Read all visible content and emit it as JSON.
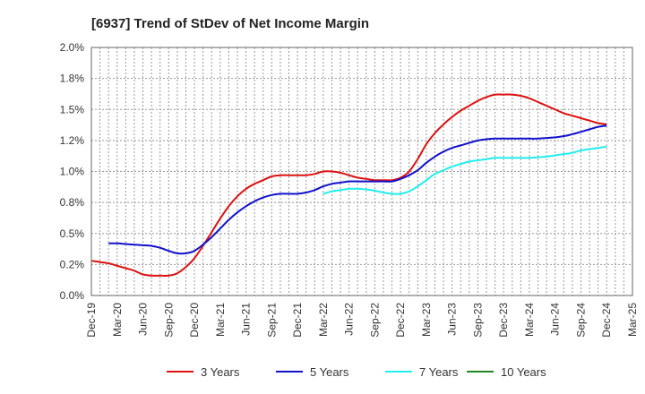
{
  "chart_data": {
    "type": "line",
    "title": "[6937]  Trend of StDev of Net Income Margin",
    "xlabel": "",
    "ylabel": "",
    "ylim": [
      0.0,
      2.0
    ],
    "ytick_values": [
      0.0,
      0.25,
      0.5,
      0.75,
      1.0,
      1.25,
      1.5,
      1.75,
      2.0
    ],
    "ytick_labels": [
      "0.0%",
      "0.2%",
      "0.5%",
      "0.8%",
      "1.0%",
      "1.2%",
      "1.5%",
      "1.8%",
      "2.0%"
    ],
    "x_tick_labels": [
      "Dec-19",
      "Mar-20",
      "Jun-20",
      "Sep-20",
      "Dec-20",
      "Mar-21",
      "Jun-21",
      "Sep-21",
      "Dec-21",
      "Mar-22",
      "Jun-22",
      "Sep-22",
      "Dec-22",
      "Mar-23",
      "Jun-23",
      "Sep-23",
      "Dec-23",
      "Mar-24",
      "Jun-24",
      "Sep-24",
      "Dec-24",
      "Mar-25"
    ],
    "x_unit": "month",
    "x_start": "Dec-19",
    "grid": true,
    "legend_position": "bottom",
    "series": [
      {
        "name": "3 Years",
        "color": "#dd1111",
        "points": [
          [
            "Dec-19",
            0.28
          ],
          [
            "Jan-20",
            0.27
          ],
          [
            "Feb-20",
            0.26
          ],
          [
            "Mar-20",
            0.24
          ],
          [
            "Apr-20",
            0.22
          ],
          [
            "May-20",
            0.2
          ],
          [
            "Jun-20",
            0.17
          ],
          [
            "Jul-20",
            0.16
          ],
          [
            "Aug-20",
            0.16
          ],
          [
            "Sep-20",
            0.16
          ],
          [
            "Oct-20",
            0.18
          ],
          [
            "Nov-20",
            0.23
          ],
          [
            "Dec-20",
            0.3
          ],
          [
            "Jan-21",
            0.4
          ],
          [
            "Feb-21",
            0.51
          ],
          [
            "Mar-21",
            0.62
          ],
          [
            "Apr-21",
            0.72
          ],
          [
            "May-21",
            0.8
          ],
          [
            "Jun-21",
            0.86
          ],
          [
            "Jul-21",
            0.9
          ],
          [
            "Aug-21",
            0.93
          ],
          [
            "Sep-21",
            0.96
          ],
          [
            "Oct-21",
            0.97
          ],
          [
            "Nov-21",
            0.97
          ],
          [
            "Dec-21",
            0.97
          ],
          [
            "Jan-22",
            0.97
          ],
          [
            "Feb-22",
            0.98
          ],
          [
            "Mar-22",
            1.0
          ],
          [
            "Apr-22",
            1.0
          ],
          [
            "May-22",
            0.99
          ],
          [
            "Jun-22",
            0.97
          ],
          [
            "Jul-22",
            0.95
          ],
          [
            "Aug-22",
            0.94
          ],
          [
            "Sep-22",
            0.93
          ],
          [
            "Oct-22",
            0.93
          ],
          [
            "Nov-22",
            0.93
          ],
          [
            "Dec-22",
            0.95
          ],
          [
            "Jan-23",
            1.0
          ],
          [
            "Feb-23",
            1.1
          ],
          [
            "Mar-23",
            1.22
          ],
          [
            "Apr-23",
            1.31
          ],
          [
            "May-23",
            1.38
          ],
          [
            "Jun-23",
            1.44
          ],
          [
            "Jul-23",
            1.49
          ],
          [
            "Aug-23",
            1.53
          ],
          [
            "Sep-23",
            1.57
          ],
          [
            "Oct-23",
            1.6
          ],
          [
            "Nov-23",
            1.62
          ],
          [
            "Dec-23",
            1.62
          ],
          [
            "Jan-24",
            1.62
          ],
          [
            "Feb-24",
            1.61
          ],
          [
            "Mar-24",
            1.59
          ],
          [
            "Apr-24",
            1.56
          ],
          [
            "May-24",
            1.53
          ],
          [
            "Jun-24",
            1.5
          ],
          [
            "Jul-24",
            1.47
          ],
          [
            "Aug-24",
            1.45
          ],
          [
            "Sep-24",
            1.43
          ],
          [
            "Oct-24",
            1.41
          ],
          [
            "Nov-24",
            1.39
          ],
          [
            "Dec-24",
            1.38
          ]
        ]
      },
      {
        "name": "5 Years",
        "color": "#1111cc",
        "points": [
          [
            "Feb-20",
            0.42
          ],
          [
            "Mar-20",
            0.42
          ],
          [
            "Apr-20",
            0.415
          ],
          [
            "May-20",
            0.41
          ],
          [
            "Jun-20",
            0.405
          ],
          [
            "Jul-20",
            0.4
          ],
          [
            "Aug-20",
            0.385
          ],
          [
            "Sep-20",
            0.36
          ],
          [
            "Oct-20",
            0.34
          ],
          [
            "Nov-20",
            0.34
          ],
          [
            "Dec-20",
            0.36
          ],
          [
            "Jan-21",
            0.41
          ],
          [
            "Feb-21",
            0.47
          ],
          [
            "Mar-21",
            0.54
          ],
          [
            "Apr-21",
            0.61
          ],
          [
            "May-21",
            0.67
          ],
          [
            "Jun-21",
            0.72
          ],
          [
            "Jul-21",
            0.76
          ],
          [
            "Aug-21",
            0.79
          ],
          [
            "Sep-21",
            0.81
          ],
          [
            "Oct-21",
            0.82
          ],
          [
            "Nov-21",
            0.82
          ],
          [
            "Dec-21",
            0.82
          ],
          [
            "Jan-22",
            0.83
          ],
          [
            "Feb-22",
            0.85
          ],
          [
            "Mar-22",
            0.88
          ],
          [
            "Apr-22",
            0.9
          ],
          [
            "May-22",
            0.91
          ],
          [
            "Jun-22",
            0.92
          ],
          [
            "Jul-22",
            0.92
          ],
          [
            "Aug-22",
            0.92
          ],
          [
            "Sep-22",
            0.92
          ],
          [
            "Oct-22",
            0.92
          ],
          [
            "Nov-22",
            0.92
          ],
          [
            "Dec-22",
            0.94
          ],
          [
            "Jan-23",
            0.97
          ],
          [
            "Feb-23",
            1.01
          ],
          [
            "Mar-23",
            1.07
          ],
          [
            "Apr-23",
            1.12
          ],
          [
            "May-23",
            1.16
          ],
          [
            "Jun-23",
            1.19
          ],
          [
            "Jul-23",
            1.21
          ],
          [
            "Aug-23",
            1.23
          ],
          [
            "Sep-23",
            1.25
          ],
          [
            "Oct-23",
            1.26
          ],
          [
            "Nov-23",
            1.265
          ],
          [
            "Dec-23",
            1.265
          ],
          [
            "Jan-24",
            1.265
          ],
          [
            "Feb-24",
            1.265
          ],
          [
            "Mar-24",
            1.265
          ],
          [
            "Apr-24",
            1.265
          ],
          [
            "May-24",
            1.27
          ],
          [
            "Jun-24",
            1.275
          ],
          [
            "Jul-24",
            1.285
          ],
          [
            "Aug-24",
            1.3
          ],
          [
            "Sep-24",
            1.32
          ],
          [
            "Oct-24",
            1.34
          ],
          [
            "Nov-24",
            1.36
          ],
          [
            "Dec-24",
            1.37
          ]
        ]
      },
      {
        "name": "7 Years",
        "color": "#22eeee",
        "points": [
          [
            "Mar-22",
            0.82
          ],
          [
            "Apr-22",
            0.84
          ],
          [
            "May-22",
            0.85
          ],
          [
            "Jun-22",
            0.86
          ],
          [
            "Jul-22",
            0.86
          ],
          [
            "Aug-22",
            0.855
          ],
          [
            "Sep-22",
            0.845
          ],
          [
            "Oct-22",
            0.83
          ],
          [
            "Nov-22",
            0.82
          ],
          [
            "Dec-22",
            0.82
          ],
          [
            "Jan-23",
            0.84
          ],
          [
            "Feb-23",
            0.88
          ],
          [
            "Mar-23",
            0.93
          ],
          [
            "Apr-23",
            0.98
          ],
          [
            "May-23",
            1.01
          ],
          [
            "Jun-23",
            1.04
          ],
          [
            "Jul-23",
            1.06
          ],
          [
            "Aug-23",
            1.08
          ],
          [
            "Sep-23",
            1.09
          ],
          [
            "Oct-23",
            1.1
          ],
          [
            "Nov-23",
            1.11
          ],
          [
            "Dec-23",
            1.11
          ],
          [
            "Jan-24",
            1.11
          ],
          [
            "Feb-24",
            1.11
          ],
          [
            "Mar-24",
            1.11
          ],
          [
            "Apr-24",
            1.115
          ],
          [
            "May-24",
            1.12
          ],
          [
            "Jun-24",
            1.13
          ],
          [
            "Jul-24",
            1.14
          ],
          [
            "Aug-24",
            1.15
          ],
          [
            "Sep-24",
            1.17
          ],
          [
            "Oct-24",
            1.18
          ],
          [
            "Nov-24",
            1.19
          ],
          [
            "Dec-24",
            1.2
          ]
        ]
      },
      {
        "name": "10 Years",
        "color": "#228822",
        "points": []
      }
    ]
  }
}
